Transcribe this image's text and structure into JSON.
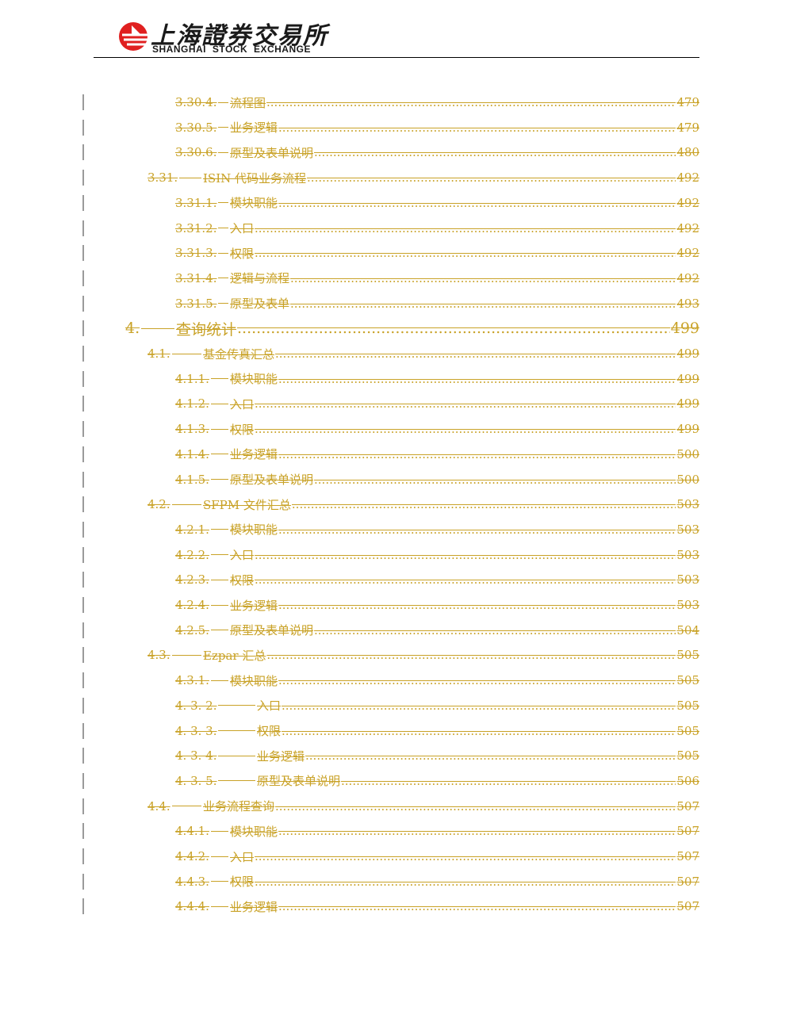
{
  "header": {
    "logo_cn": "上海證券交易所",
    "logo_en": "SHANGHAI  STOCK  EXCHANGE",
    "colors": {
      "logo_red": "#E02020",
      "toc_text": "#C9A227"
    }
  },
  "toc": [
    {
      "level": 3,
      "number": "3.30.4.",
      "title": "流程图",
      "page": "479"
    },
    {
      "level": 3,
      "number": "3.30.5.",
      "title": "业务逻辑",
      "page": "479"
    },
    {
      "level": 3,
      "number": "3.30.6.",
      "title": "原型及表单说明",
      "page": "480"
    },
    {
      "level": 2,
      "number": "3.31.",
      "title": "ISIN 代码业务流程",
      "page": "492"
    },
    {
      "level": 3,
      "number": "3.31.1.",
      "title": "模块职能",
      "page": "492"
    },
    {
      "level": 3,
      "number": "3.31.2.",
      "title": "入口",
      "page": "492"
    },
    {
      "level": 3,
      "number": "3.31.3.",
      "title": "权限",
      "page": "492"
    },
    {
      "level": 3,
      "number": "3.31.4.",
      "title": "逻辑与流程",
      "page": "492"
    },
    {
      "level": 3,
      "number": "3.31.5.",
      "title": "原型及表单",
      "page": "493"
    },
    {
      "level": 1,
      "number": "4.",
      "title": "查询统计",
      "page": "499"
    },
    {
      "level": 2,
      "number": "4.1.",
      "title": "基金传真汇总",
      "page": "499"
    },
    {
      "level": 3,
      "number": "4.1.1.",
      "title": "模块职能",
      "page": "499"
    },
    {
      "level": 3,
      "number": "4.1.2.",
      "title": "入口",
      "page": "499"
    },
    {
      "level": 3,
      "number": "4.1.3.",
      "title": "权限",
      "page": "499"
    },
    {
      "level": 3,
      "number": "4.1.4.",
      "title": "业务逻辑",
      "page": "500"
    },
    {
      "level": 3,
      "number": "4.1.5.",
      "title": "原型及表单说明",
      "page": "500"
    },
    {
      "level": 2,
      "number": "4.2.",
      "title": "SFPM 文件汇总",
      "page": "503"
    },
    {
      "level": 3,
      "number": "4.2.1.",
      "title": "模块职能",
      "page": "503"
    },
    {
      "level": 3,
      "number": "4.2.2.",
      "title": "入口",
      "page": "503"
    },
    {
      "level": 3,
      "number": "4.2.3.",
      "title": "权限",
      "page": "503"
    },
    {
      "level": 3,
      "number": "4.2.4.",
      "title": "业务逻辑",
      "page": "503"
    },
    {
      "level": 3,
      "number": "4.2.5.",
      "title": "原型及表单说明",
      "page": "504"
    },
    {
      "level": 2,
      "number": "4.3.",
      "title": "Ezpar 汇总",
      "page": "505"
    },
    {
      "level": 3,
      "number": "4.3.1.",
      "title": "模块职能",
      "page": "505"
    },
    {
      "level": 3,
      "number": "4. 3. 2.",
      "title": "入口",
      "page": "505",
      "wide": true
    },
    {
      "level": 3,
      "number": "4. 3. 3.",
      "title": "权限",
      "page": "505",
      "wide": true
    },
    {
      "level": 3,
      "number": "4. 3. 4.",
      "title": "业务逻辑",
      "page": "505",
      "wide": true
    },
    {
      "level": 3,
      "number": "4. 3. 5.",
      "title": "原型及表单说明",
      "page": "506",
      "wide": true
    },
    {
      "level": 2,
      "number": "4.4.",
      "title": "业务流程查询",
      "page": "507"
    },
    {
      "level": 3,
      "number": "4.4.1.",
      "title": "模块职能",
      "page": "507"
    },
    {
      "level": 3,
      "number": "4.4.2.",
      "title": "入口",
      "page": "507"
    },
    {
      "level": 3,
      "number": "4.4.3.",
      "title": "权限",
      "page": "507"
    },
    {
      "level": 3,
      "number": "4.4.4.",
      "title": "业务逻辑",
      "page": "507"
    }
  ]
}
